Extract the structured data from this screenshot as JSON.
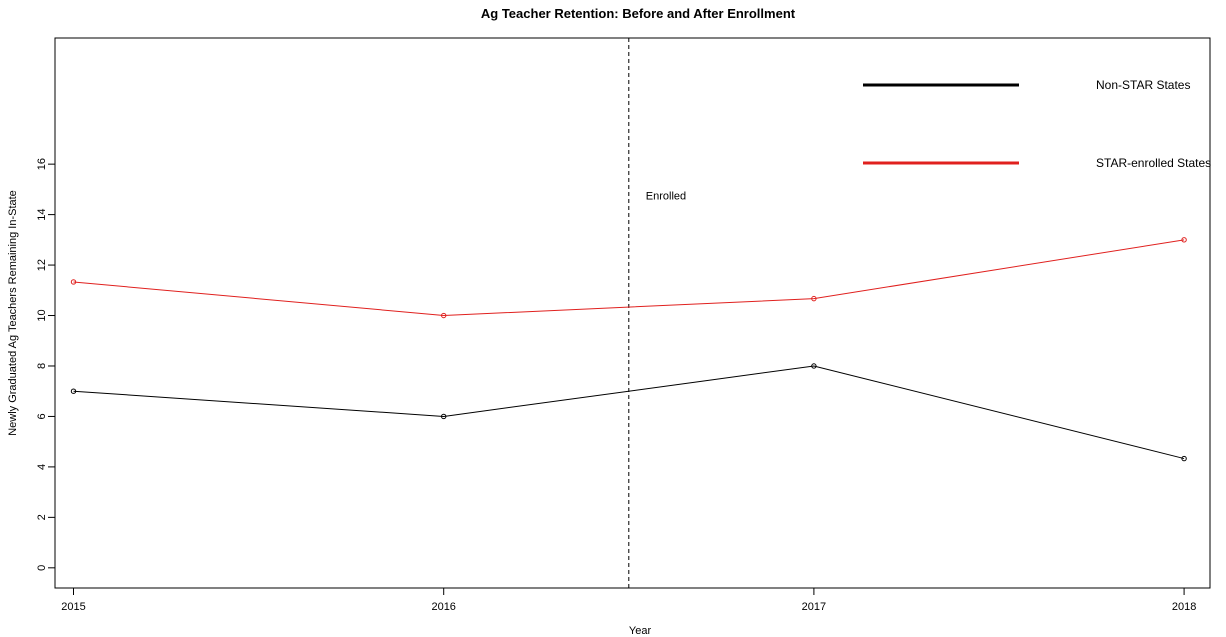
{
  "chart_data": {
    "type": "line",
    "title": "Ag Teacher Retention: Before and After Enrollment",
    "xlabel": "Year",
    "ylabel": "Newly Graduated Ag Teachers Remaining In-State",
    "x": [
      2015,
      2016,
      2017,
      2018
    ],
    "x_tick_labels": [
      "2015",
      "2016",
      "2017",
      "2018"
    ],
    "y_ticks": [
      0,
      2,
      4,
      6,
      8,
      10,
      12,
      14,
      16
    ],
    "xlim": [
      2014.95,
      2018.07
    ],
    "ylim": [
      -0.8,
      21.0
    ],
    "grid": false,
    "series": [
      {
        "name": "Non-STAR States",
        "color": "#000000",
        "values": [
          7.0,
          6.0,
          8.0,
          4.33
        ]
      },
      {
        "name": "STAR-enrolled States",
        "color": "#e0201e",
        "values": [
          11.33,
          10.0,
          10.67,
          13.0
        ]
      }
    ],
    "annotations": [
      {
        "type": "vline",
        "x": 2016.5,
        "label": "Enrolled"
      }
    ],
    "legend": {
      "placement": "top-right",
      "entries": [
        {
          "label": "Non-STAR States",
          "color": "#000000"
        },
        {
          "label": "STAR-enrolled States",
          "color": "#e0201e"
        }
      ]
    }
  }
}
